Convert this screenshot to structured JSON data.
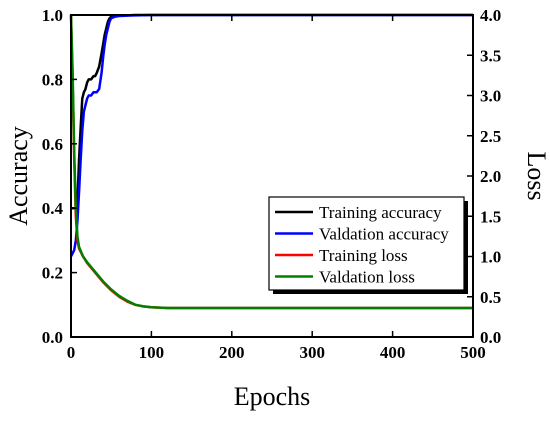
{
  "chart_data": {
    "type": "line",
    "xlabel": "Epochs",
    "ylabel_left": "Accuracy",
    "ylabel_right": "Loss",
    "xlim": [
      0,
      500
    ],
    "ylim_left": [
      0,
      1.0
    ],
    "ylim_right": [
      0,
      4.0
    ],
    "x_ticks": [
      0,
      100,
      200,
      300,
      400,
      500
    ],
    "x_tick_labels": [
      "0",
      "100",
      "200",
      "300",
      "400",
      "500"
    ],
    "y_left_ticks": [
      0.0,
      0.2,
      0.4,
      0.6,
      0.8,
      1.0
    ],
    "y_left_tick_labels": [
      "0.0",
      "0.2",
      "0.4",
      "0.6",
      "0.8",
      "1.0"
    ],
    "y_right_ticks": [
      0.0,
      0.5,
      1.0,
      1.5,
      2.0,
      2.5,
      3.0,
      3.5,
      4.0
    ],
    "y_right_tick_labels": [
      "0.0",
      "0.5",
      "1.0",
      "1.5",
      "2.0",
      "2.5",
      "3.0",
      "3.5",
      "4.0"
    ],
    "grid": false,
    "legend_position": "lower-right",
    "series": [
      {
        "name": "Training accuracy",
        "axis": "left",
        "color": "#000000",
        "x": [
          0,
          2,
          4,
          6,
          8,
          10,
          12,
          14,
          16,
          18,
          20,
          22,
          25,
          28,
          30,
          32,
          35,
          38,
          40,
          42,
          44,
          46,
          48,
          50,
          55,
          60,
          80,
          100,
          200,
          300,
          400,
          500
        ],
        "y": [
          0.4,
          0.4,
          0.4,
          0.4,
          0.42,
          0.55,
          0.65,
          0.74,
          0.76,
          0.77,
          0.79,
          0.8,
          0.8,
          0.81,
          0.81,
          0.82,
          0.84,
          0.88,
          0.91,
          0.94,
          0.96,
          0.98,
          0.99,
          0.995,
          0.997,
          0.998,
          1.0,
          1.0,
          1.0,
          1.0,
          1.0,
          1.0
        ]
      },
      {
        "name": "Valdation accuracy",
        "axis": "left",
        "color": "#0000ff",
        "x": [
          0,
          2,
          4,
          6,
          8,
          10,
          12,
          14,
          16,
          18,
          20,
          22,
          25,
          28,
          30,
          32,
          35,
          38,
          40,
          42,
          44,
          46,
          48,
          50,
          55,
          60,
          80,
          100,
          200,
          300,
          400,
          500
        ],
        "y": [
          0.25,
          0.26,
          0.27,
          0.3,
          0.36,
          0.45,
          0.55,
          0.64,
          0.7,
          0.72,
          0.74,
          0.75,
          0.75,
          0.76,
          0.76,
          0.76,
          0.77,
          0.82,
          0.87,
          0.91,
          0.94,
          0.96,
          0.98,
          0.99,
          0.995,
          0.997,
          0.999,
          1.0,
          1.0,
          1.0,
          1.0,
          1.0
        ]
      },
      {
        "name": "Training loss",
        "axis": "right",
        "color": "#ff0000",
        "x": [
          0,
          2,
          4,
          6,
          8,
          10,
          15,
          20,
          30,
          40,
          50,
          60,
          70,
          80,
          90,
          100,
          120,
          150,
          200,
          300,
          400,
          500
        ],
        "y": [
          4.0,
          3.2,
          2.2,
          1.5,
          1.2,
          1.1,
          1.0,
          0.92,
          0.8,
          0.68,
          0.58,
          0.5,
          0.44,
          0.4,
          0.38,
          0.37,
          0.36,
          0.36,
          0.36,
          0.36,
          0.36,
          0.36
        ]
      },
      {
        "name": "Valdation loss",
        "axis": "right",
        "color": "#008000",
        "x": [
          0,
          2,
          4,
          6,
          8,
          10,
          15,
          20,
          30,
          40,
          50,
          60,
          70,
          80,
          90,
          100,
          120,
          150,
          200,
          300,
          400,
          500
        ],
        "y": [
          4.0,
          3.3,
          2.3,
          1.6,
          1.25,
          1.12,
          1.0,
          0.93,
          0.81,
          0.69,
          0.59,
          0.51,
          0.45,
          0.4,
          0.38,
          0.37,
          0.36,
          0.36,
          0.36,
          0.36,
          0.36,
          0.36
        ]
      }
    ]
  }
}
